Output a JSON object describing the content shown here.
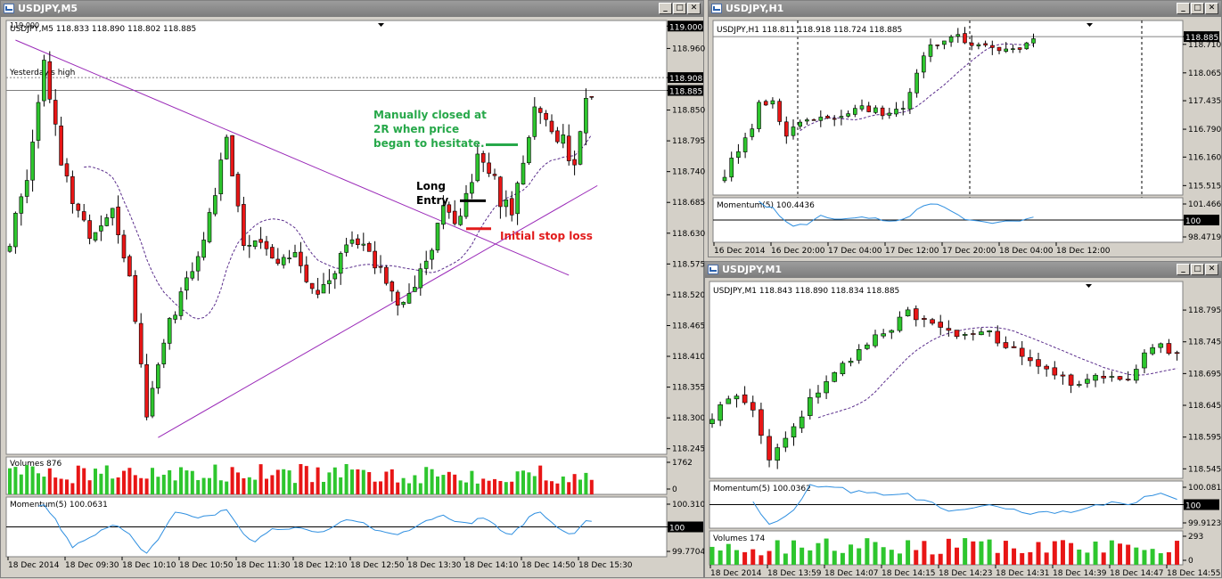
{
  "windows": {
    "m5": {
      "title": "USDJPY,M5"
    },
    "h1": {
      "title": "USDJPY,H1"
    },
    "m1": {
      "title": "USDJPY,M1"
    }
  },
  "window_buttons": {
    "minimize": "_",
    "maximize": "□",
    "close": "✕"
  },
  "colors": {
    "bull": "#2ec62e",
    "bear": "#e81616",
    "trendline": "#9a29b8",
    "momentum": "#2f8fe0",
    "ma": "#5a2d8c",
    "annotation_green": "#27a84a",
    "annotation_red": "#e21b1b",
    "window_title": "#8c8c8c"
  },
  "chart_data": [
    {
      "type": "candlestick",
      "symbol_line": "USDJPY,M5  118.833 118.890 118.802 118.885",
      "corner_label": "119.000",
      "y_ticks": [
        "119.000",
        "118.960",
        "118.908",
        "118.885",
        "118.850",
        "118.795",
        "118.740",
        "118.685",
        "118.630",
        "118.575",
        "118.520",
        "118.465",
        "118.410",
        "118.355",
        "118.300",
        "118.245"
      ],
      "price_badges": [
        "119.000",
        "118.908",
        "118.885"
      ],
      "ylim": [
        118.235,
        119.01
      ],
      "x_labels": [
        "18 Dec 2014",
        "18 Dec 09:30",
        "18 Dec 10:10",
        "18 Dec 10:50",
        "18 Dec 11:30",
        "18 Dec 12:10",
        "18 Dec 12:50",
        "18 Dec 13:30",
        "18 Dec 14:10",
        "18 Dec 14:50",
        "18 Dec 15:30"
      ],
      "yesterday_high": {
        "label": "Yesterday's high",
        "price": 118.908
      },
      "bid_line": 118.885,
      "annotations": {
        "long_entry_line1": "Long",
        "long_entry_line2": "Entry",
        "closed_line1": "Manually closed at",
        "closed_line2": "2R when price",
        "closed_line3": "began to hesitate.",
        "stop_loss": "Initial stop loss"
      },
      "trade_levels": {
        "entry": 118.688,
        "stop": 118.638,
        "target": 118.788
      },
      "trendlines": [
        {
          "from": [
            1,
            118.975
          ],
          "to": [
            98,
            118.555
          ]
        },
        {
          "from": [
            26,
            118.265
          ],
          "to": [
            103,
            118.715
          ]
        }
      ],
      "volume_label": "Volumes 876",
      "volume_ticks": [
        "1762",
        "0"
      ],
      "momentum_label": "Momentum(5) 100.0631",
      "momentum_ticks": [
        "100.3104",
        "100",
        "99.7704"
      ],
      "anchors": [
        [
          0,
          118.62
        ],
        [
          3,
          118.72
        ],
        [
          6,
          118.94
        ],
        [
          9,
          118.75
        ],
        [
          12,
          118.66
        ],
        [
          15,
          118.62
        ],
        [
          18,
          118.68
        ],
        [
          21,
          118.55
        ],
        [
          24,
          118.31
        ],
        [
          27,
          118.44
        ],
        [
          30,
          118.52
        ],
        [
          33,
          118.58
        ],
        [
          36,
          118.71
        ],
        [
          38,
          118.79
        ],
        [
          41,
          118.62
        ],
        [
          44,
          118.61
        ],
        [
          47,
          118.58
        ],
        [
          50,
          118.6
        ],
        [
          53,
          118.52
        ],
        [
          56,
          118.55
        ],
        [
          59,
          118.61
        ],
        [
          62,
          118.6
        ],
        [
          65,
          118.56
        ],
        [
          68,
          118.49
        ],
        [
          71,
          118.53
        ],
        [
          74,
          118.6
        ],
        [
          76,
          118.67
        ],
        [
          78,
          118.65
        ],
        [
          80,
          118.69
        ],
        [
          82,
          118.77
        ],
        [
          84,
          118.75
        ],
        [
          86,
          118.69
        ],
        [
          88,
          118.67
        ],
        [
          90,
          118.76
        ],
        [
          92,
          118.85
        ],
        [
          94,
          118.82
        ],
        [
          97,
          118.8
        ],
        [
          99,
          118.74
        ],
        [
          101,
          118.87
        ],
        [
          102,
          118.885
        ]
      ]
    },
    {
      "type": "candlestick",
      "symbol_line": "USDJPY,H1  118.811 118.918 118.724 118.885",
      "y_ticks": [
        "118.885",
        "118.710",
        "118.065",
        "117.435",
        "116.790",
        "116.160",
        "115.515"
      ],
      "price_badges": [
        "118.885"
      ],
      "ylim": [
        115.3,
        119.25
      ],
      "bid_line": 118.885,
      "x_labels": [
        "16 Dec 2014",
        "16 Dec 20:00",
        "17 Dec 04:00",
        "17 Dec 12:00",
        "17 Dec 20:00",
        "18 Dec 04:00",
        "18 Dec 12:00"
      ],
      "momentum_label": "Momentum(5) 100.4436",
      "momentum_ticks": [
        "101.4665",
        "100",
        "98.4719"
      ],
      "anchors": [
        [
          0,
          115.8
        ],
        [
          3,
          116.5
        ],
        [
          5,
          117.3
        ],
        [
          7,
          117.4
        ],
        [
          9,
          116.6
        ],
        [
          11,
          116.9
        ],
        [
          14,
          117.0
        ],
        [
          17,
          117.1
        ],
        [
          20,
          117.3
        ],
        [
          23,
          117.2
        ],
        [
          26,
          117.35
        ],
        [
          29,
          118.4
        ],
        [
          31,
          118.8
        ],
        [
          34,
          118.85
        ],
        [
          37,
          118.7
        ],
        [
          40,
          118.6
        ],
        [
          43,
          118.7
        ],
        [
          45,
          118.8
        ]
      ]
    },
    {
      "type": "candlestick",
      "symbol_line": "USDJPY,M1  118.843 118.890 118.834 118.885",
      "y_ticks": [
        "118.795",
        "118.745",
        "118.695",
        "118.645",
        "118.595",
        "118.545"
      ],
      "ylim": [
        118.53,
        118.84
      ],
      "x_labels": [
        "18 Dec 2014",
        "18 Dec 13:59",
        "18 Dec 14:07",
        "18 Dec 14:15",
        "18 Dec 14:23",
        "18 Dec 14:31",
        "18 Dec 14:39",
        "18 Dec 14:47",
        "18 Dec 14:55"
      ],
      "momentum_label": "Momentum(5) 100.0362",
      "momentum_ticks": [
        "100.081",
        "100",
        "99.9123"
      ],
      "volume_label": "Volumes 174",
      "volume_ticks": [
        "293",
        "0"
      ],
      "anchors": [
        [
          0,
          118.63
        ],
        [
          3,
          118.66
        ],
        [
          5,
          118.63
        ],
        [
          7,
          118.56
        ],
        [
          9,
          118.59
        ],
        [
          12,
          118.65
        ],
        [
          15,
          118.7
        ],
        [
          18,
          118.73
        ],
        [
          21,
          118.76
        ],
        [
          24,
          118.79
        ],
        [
          27,
          118.78
        ],
        [
          30,
          118.76
        ],
        [
          34,
          118.76
        ],
        [
          37,
          118.73
        ],
        [
          40,
          118.7
        ],
        [
          44,
          118.68
        ],
        [
          47,
          118.69
        ],
        [
          50,
          118.68
        ],
        [
          53,
          118.72
        ],
        [
          55,
          118.75
        ],
        [
          57,
          118.72
        ]
      ]
    }
  ]
}
